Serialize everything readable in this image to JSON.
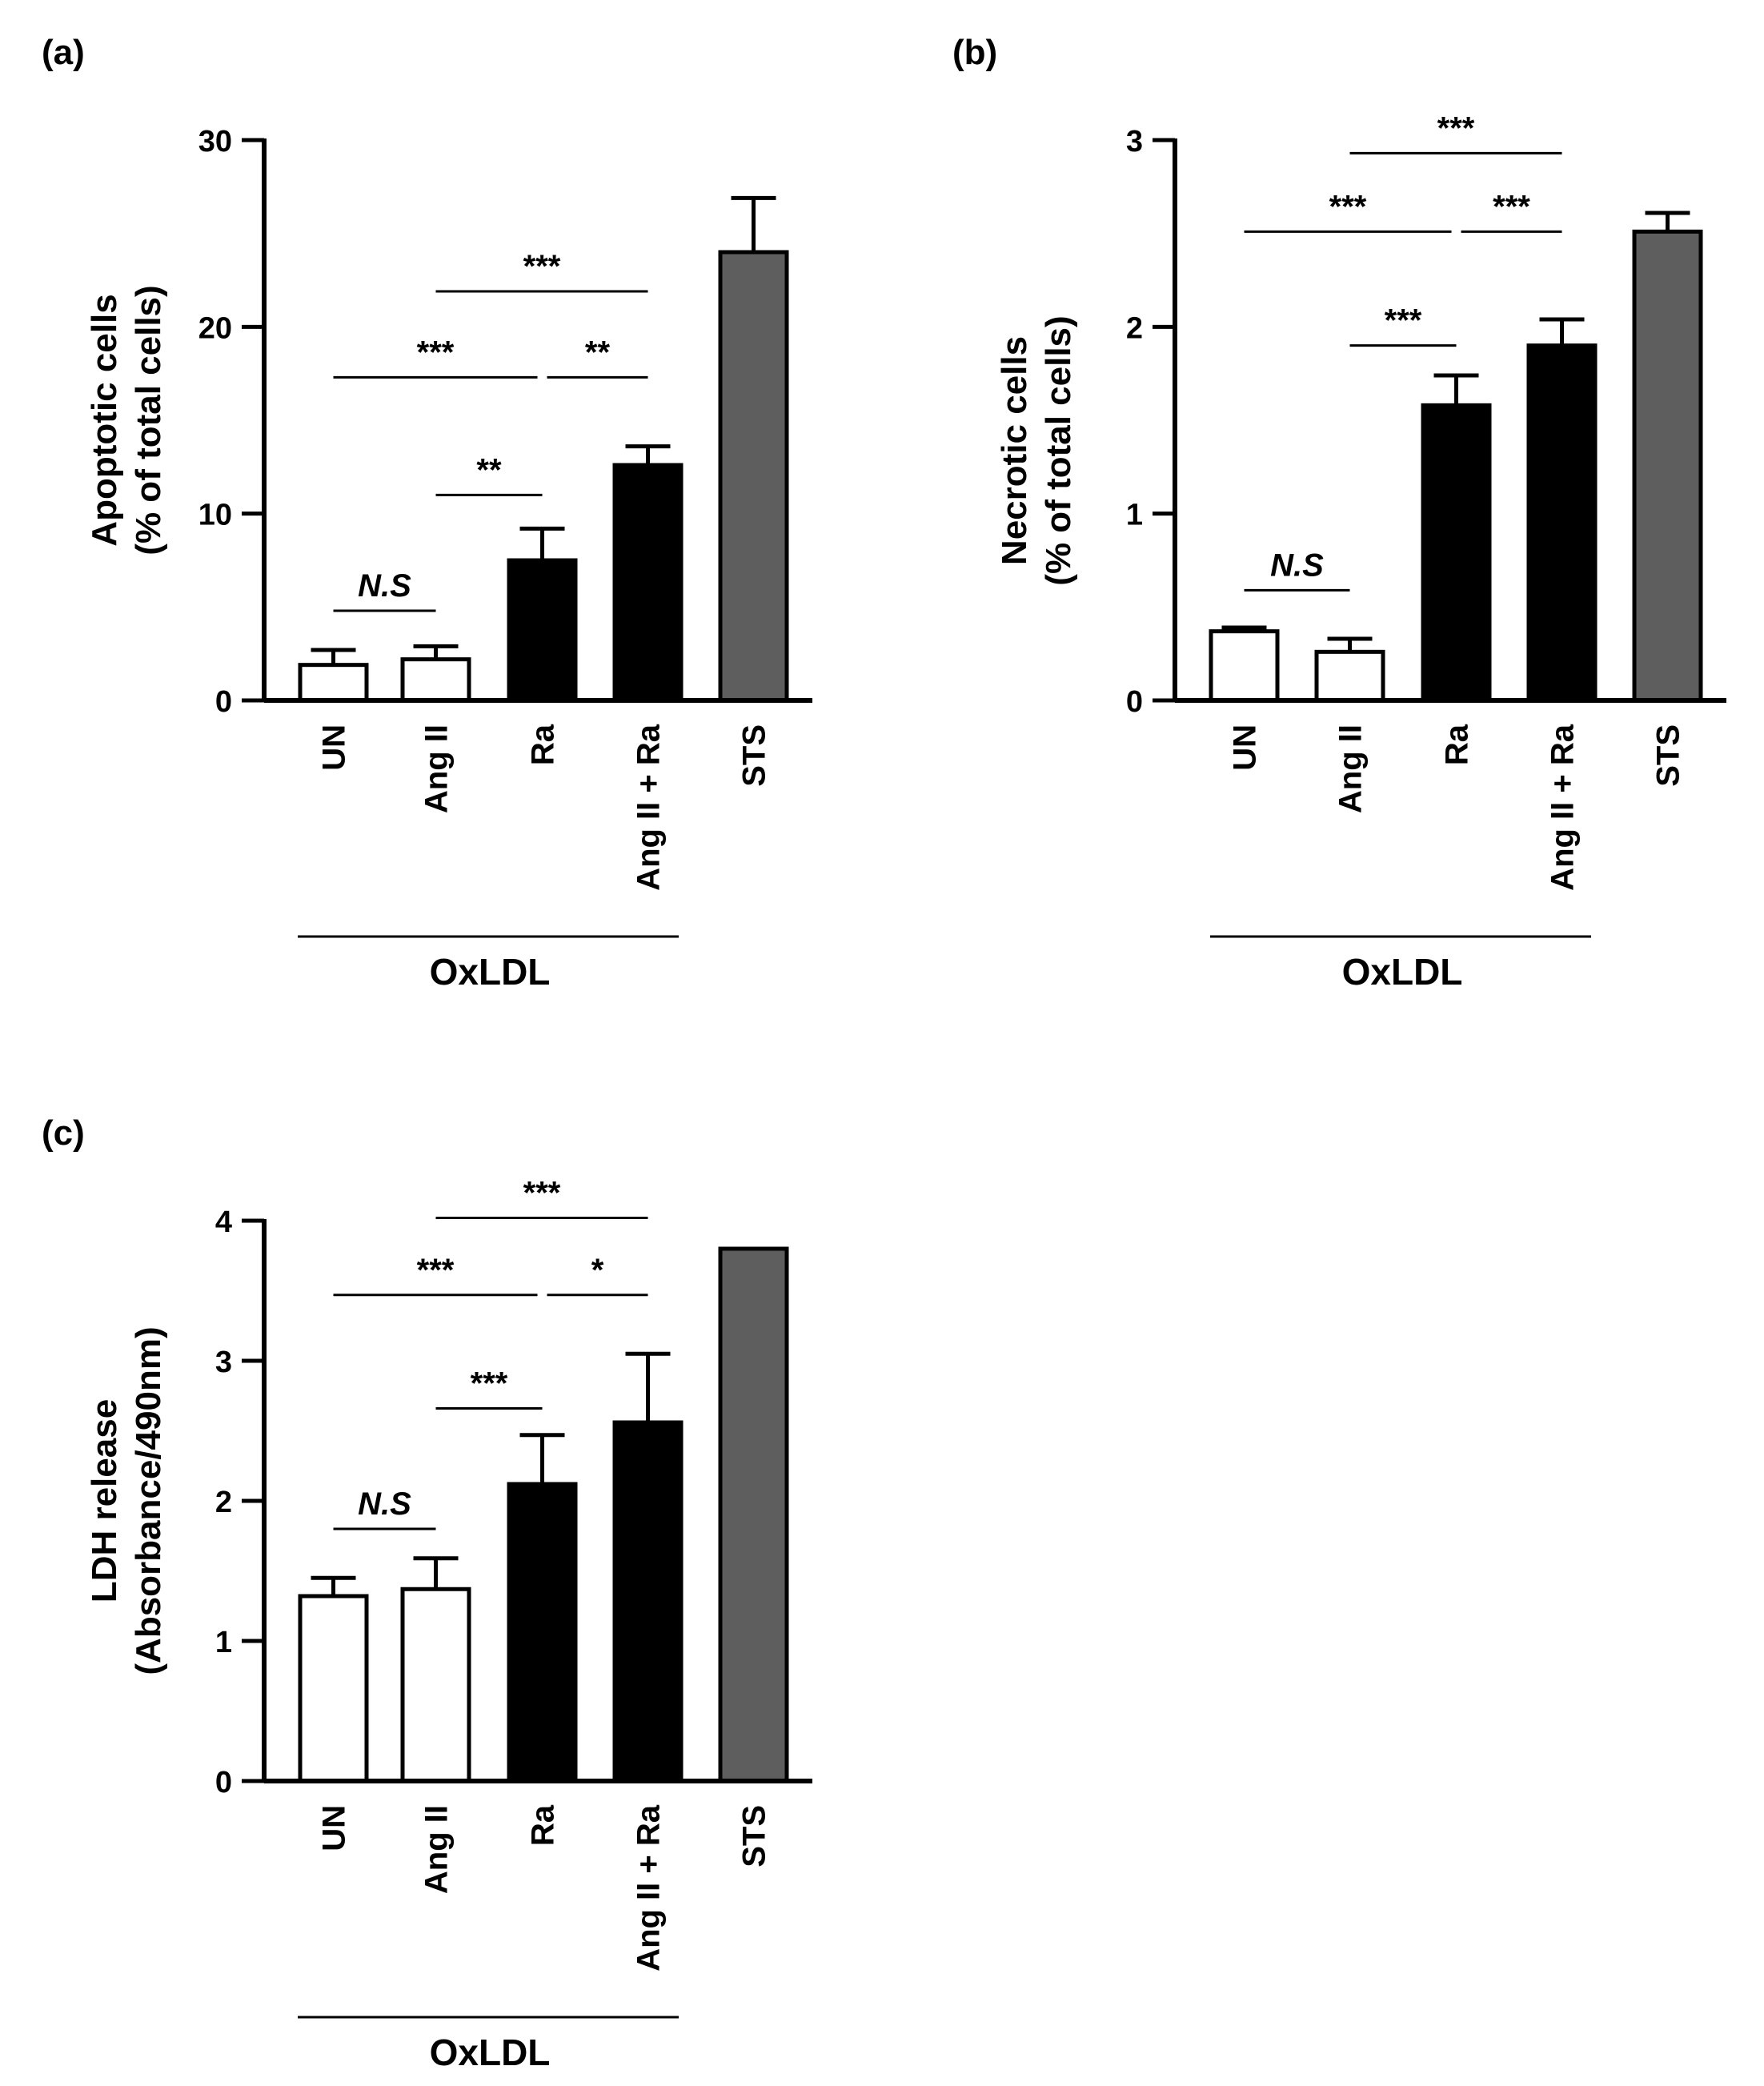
{
  "chart_data": [
    {
      "panel_label": "(a)",
      "type": "bar",
      "categories": [
        "UN",
        "Ang II",
        "Ra",
        "Ang II + Ra",
        "STS"
      ],
      "values": [
        1.9,
        2.2,
        7.5,
        12.6,
        24.0
      ],
      "errors": [
        0.8,
        0.7,
        1.7,
        1.0,
        2.9
      ],
      "bar_colors": [
        "#ffffff",
        "#ffffff",
        "#000000",
        "#000000",
        "#5e5e5e"
      ],
      "ylabel_line1": "Apoptotic cells",
      "ylabel_line2": "(% of total cells)",
      "ylim": [
        0,
        30
      ],
      "yticks": [
        0,
        10,
        20,
        30
      ],
      "group_label": "OxLDL",
      "comparisons": [
        {
          "from": 0,
          "to": 1,
          "label": "N.S",
          "y": 4.8,
          "italic": true
        },
        {
          "from": 1,
          "to": 2,
          "label": "**",
          "y": 11.0,
          "italic": false
        },
        {
          "from": 0,
          "to": 2,
          "label": "***",
          "y": 17.3,
          "italic": false
        },
        {
          "from": 2,
          "to": 3,
          "label": "**",
          "y": 17.3,
          "italic": false
        },
        {
          "from": 1,
          "to": 3,
          "label": "***",
          "y": 21.9,
          "italic": false
        }
      ]
    },
    {
      "panel_label": "(b)",
      "type": "bar",
      "categories": [
        "UN",
        "Ang II",
        "Ra",
        "Ang II + Ra",
        "STS"
      ],
      "values": [
        0.37,
        0.26,
        1.58,
        1.9,
        2.51
      ],
      "errors": [
        0.02,
        0.07,
        0.16,
        0.14,
        0.1
      ],
      "bar_colors": [
        "#ffffff",
        "#ffffff",
        "#000000",
        "#000000",
        "#5e5e5e"
      ],
      "ylabel_line1": "Necrotic cells",
      "ylabel_line2": "(% of total cells)",
      "ylim": [
        0,
        3
      ],
      "yticks": [
        0,
        1,
        2,
        3
      ],
      "group_label": "OxLDL",
      "comparisons": [
        {
          "from": 0,
          "to": 1,
          "label": "N.S",
          "y": 0.59,
          "italic": true
        },
        {
          "from": 1,
          "to": 2,
          "label": "***",
          "y": 1.9,
          "italic": false
        },
        {
          "from": 0,
          "to": 2,
          "label": "***",
          "y": 2.51,
          "italic": false
        },
        {
          "from": 2,
          "to": 3,
          "label": "***",
          "y": 2.51,
          "italic": false
        },
        {
          "from": 1,
          "to": 3,
          "label": "***",
          "y": 2.93,
          "italic": false
        }
      ]
    },
    {
      "panel_label": "(c)",
      "type": "bar",
      "categories": [
        "UN",
        "Ang II",
        "Ra",
        "Ang II + Ra",
        "STS"
      ],
      "values": [
        1.32,
        1.37,
        2.12,
        2.56,
        3.8
      ],
      "errors": [
        0.13,
        0.22,
        0.35,
        0.49,
        0.0
      ],
      "bar_colors": [
        "#ffffff",
        "#ffffff",
        "#000000",
        "#000000",
        "#5e5e5e"
      ],
      "ylabel_line1": "LDH release",
      "ylabel_line2": "(Absorbance/490nm)",
      "ylim": [
        0,
        4
      ],
      "yticks": [
        0,
        1,
        2,
        3,
        4
      ],
      "group_label": "OxLDL",
      "comparisons": [
        {
          "from": 0,
          "to": 1,
          "label": "N.S",
          "y": 1.8,
          "italic": true
        },
        {
          "from": 1,
          "to": 2,
          "label": "***",
          "y": 2.66,
          "italic": false
        },
        {
          "from": 0,
          "to": 2,
          "label": "***",
          "y": 3.47,
          "italic": false
        },
        {
          "from": 2,
          "to": 3,
          "label": "*",
          "y": 3.47,
          "italic": false
        },
        {
          "from": 1,
          "to": 3,
          "label": "***",
          "y": 4.02,
          "italic": false
        }
      ]
    }
  ]
}
